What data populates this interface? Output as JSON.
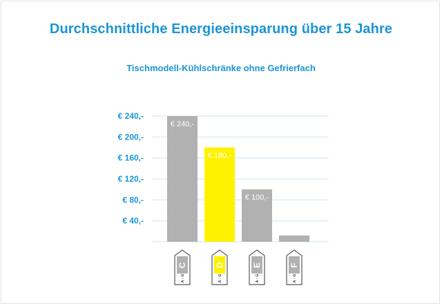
{
  "chart_data": {
    "type": "bar",
    "title": "Durchschnittliche Energieeinsparung über 15 Jahre",
    "subtitle": "Tischmodell-Kühlschränke ohne Gefrierfach",
    "categories": [
      "C",
      "D",
      "E",
      "F"
    ],
    "values": [
      240,
      180,
      100,
      12
    ],
    "data_labels": [
      "€ 240,-",
      "€ 180,-",
      "€ 100,-",
      ""
    ],
    "colors": [
      "#b1b1b1",
      "#fff200",
      "#b1b1b1",
      "#b1b1b1"
    ],
    "badge_scale": [
      "A",
      "G"
    ],
    "yticks": [
      40,
      80,
      120,
      160,
      200,
      240
    ],
    "ytick_labels": [
      "€ 40,-",
      "€ 80,-",
      "€ 120,-",
      "€ 160,-",
      "€ 200,-",
      "€ 240,-"
    ],
    "ylim": [
      0,
      240
    ],
    "xlabel": "",
    "ylabel": "",
    "grid": true,
    "grid_color": "#cfe6f3",
    "accent": "#1b95d3",
    "badge_fill": "#ffffff"
  }
}
